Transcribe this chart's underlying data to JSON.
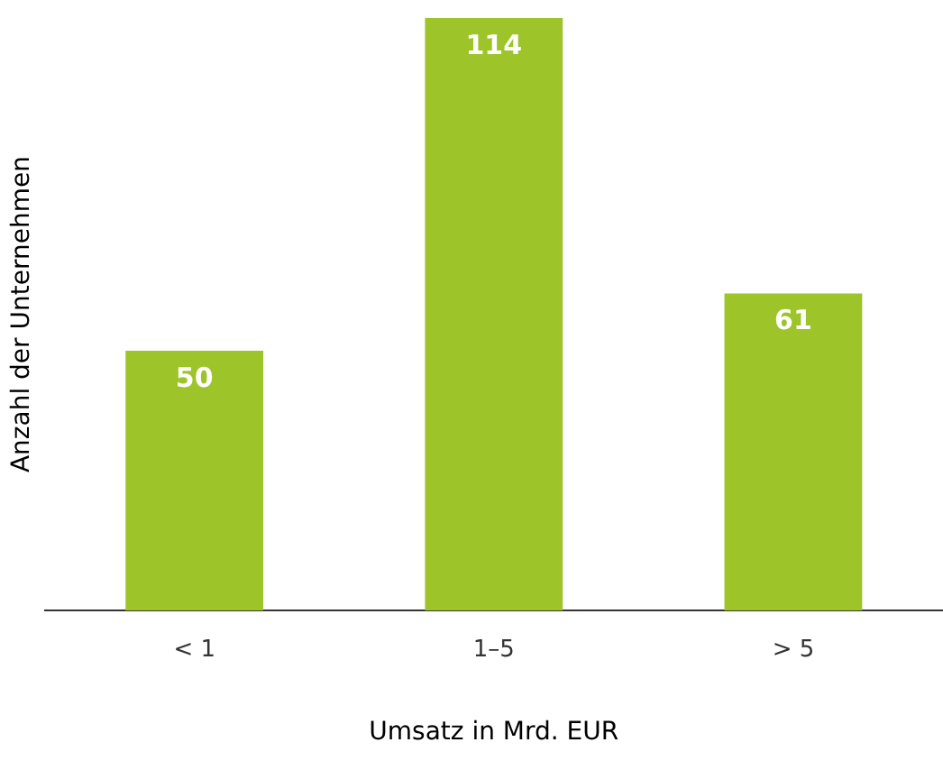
{
  "chart_data": {
    "type": "bar",
    "xlabel": "Umsatz in Mrd. EUR",
    "ylabel": "Anzahl der Unternehmen",
    "categories": [
      "< 1",
      "1–5",
      "> 5"
    ],
    "values": [
      50,
      114,
      61
    ],
    "color": "#9dc428",
    "data_labels": true,
    "grid": false,
    "legend": false
  }
}
